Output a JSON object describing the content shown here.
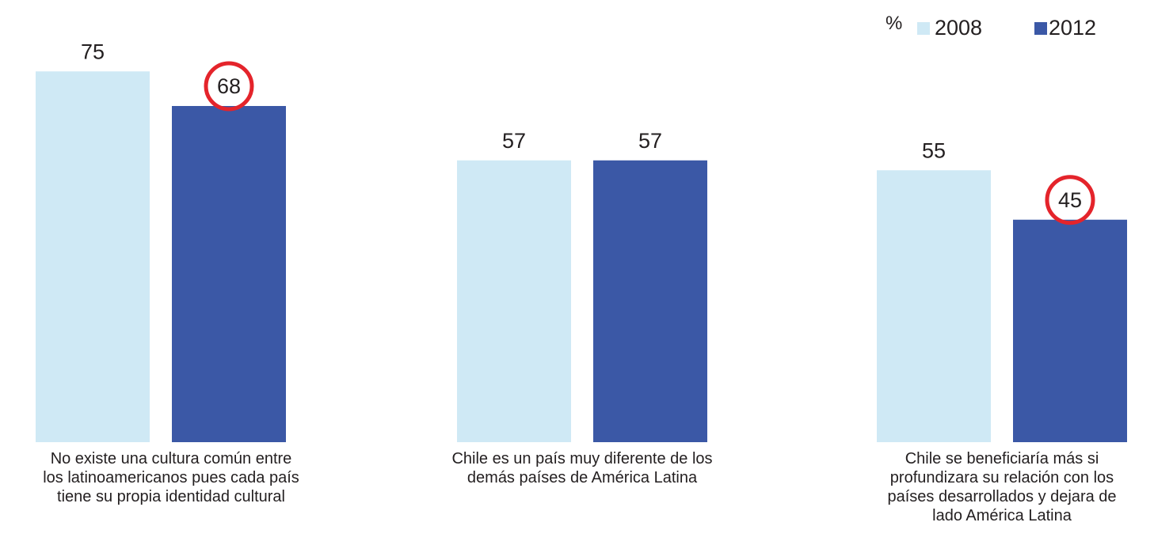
{
  "chart_data": {
    "type": "bar",
    "unit": "%",
    "categories": [
      "No existe una cultura común entre\nlos latinoamericanos pues cada país\ntiene su propia identidad cultural",
      "Chile es un país muy diferente de los\ndemás países de América Latina",
      "Chile se beneficiaría más si\nprofundizara su relación con los\npaíses desarrollados y dejara de\nlado América Latina"
    ],
    "series": [
      {
        "name": "2008",
        "values": [
          75,
          57,
          55
        ],
        "color": "#cfe9f5"
      },
      {
        "name": "2012",
        "values": [
          68,
          57,
          45
        ],
        "color": "#3b58a6"
      }
    ],
    "highlighted": [
      {
        "series": 1,
        "category": 0
      },
      {
        "series": 1,
        "category": 2
      }
    ],
    "highlight_color": "#e4242b",
    "legend_position": "top-right",
    "grid": false,
    "ylim": [
      0,
      100
    ]
  }
}
